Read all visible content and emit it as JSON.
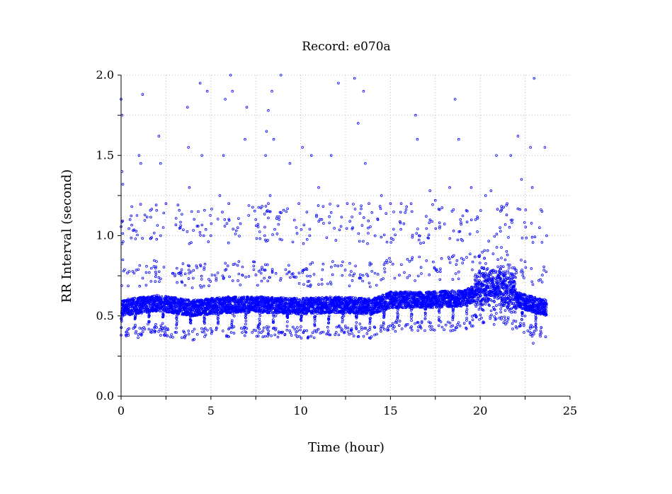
{
  "chart_data": {
    "type": "scatter",
    "title": "Record:  e070a",
    "xlabel": "Time (hour)",
    "ylabel": "RR Interval (second)",
    "xlim": [
      0,
      25
    ],
    "ylim": [
      0,
      2
    ],
    "xticks": [
      0,
      5,
      10,
      15,
      20,
      25
    ],
    "xtick_labels": [
      "0",
      "5",
      "10",
      "15",
      "20",
      "25"
    ],
    "yticks": [
      0,
      0.5,
      1,
      1.5,
      2
    ],
    "ytick_labels": [
      "0.0",
      "0.5",
      "1.0",
      "1.5",
      "2.0"
    ],
    "grid": true,
    "marker_color": "#0000ff",
    "series": [
      {
        "x_range": [
          0,
          23.7
        ],
        "points": [
          [
            0.0,
            1.85
          ],
          [
            0.05,
            1.75
          ],
          [
            0.05,
            1.4
          ],
          [
            0.1,
            1.32
          ],
          [
            0.05,
            0.95
          ],
          [
            0.1,
            0.85
          ],
          [
            0.1,
            0.5
          ],
          [
            0.2,
            0.55
          ],
          [
            0.3,
            0.4
          ],
          [
            0.5,
            1.1
          ],
          [
            0.8,
            0.98
          ],
          [
            1.0,
            1.5
          ],
          [
            1.1,
            1.45
          ],
          [
            1.2,
            1.88
          ],
          [
            1.0,
            0.6
          ],
          [
            1.2,
            0.55
          ],
          [
            1.5,
            0.45
          ],
          [
            2.0,
            0.6
          ],
          [
            2.1,
            1.62
          ],
          [
            2.2,
            1.45
          ],
          [
            2.2,
            1.0
          ],
          [
            2.5,
            1.2
          ],
          [
            2.8,
            0.55
          ],
          [
            3.0,
            0.6
          ],
          [
            3.3,
            1.05
          ],
          [
            3.7,
            1.8
          ],
          [
            3.75,
            1.55
          ],
          [
            3.8,
            1.3
          ],
          [
            3.8,
            0.95
          ],
          [
            4.0,
            0.5
          ],
          [
            4.3,
            1.15
          ],
          [
            4.4,
            1.95
          ],
          [
            4.5,
            1.5
          ],
          [
            4.6,
            1.0
          ],
          [
            4.7,
            0.55
          ],
          [
            4.8,
            1.9
          ],
          [
            5.0,
            1.0
          ],
          [
            5.2,
            0.6
          ],
          [
            5.5,
            1.25
          ],
          [
            5.7,
            1.5
          ],
          [
            5.8,
            1.85
          ],
          [
            6.0,
            1.2
          ],
          [
            6.1,
            2.0
          ],
          [
            6.2,
            1.9
          ],
          [
            6.3,
            0.5
          ],
          [
            6.5,
            1.05
          ],
          [
            6.9,
            1.6
          ],
          [
            7.0,
            1.8
          ],
          [
            7.2,
            0.58
          ],
          [
            7.5,
            1.1
          ],
          [
            8.0,
            1.0
          ],
          [
            8.05,
            1.5
          ],
          [
            8.1,
            1.65
          ],
          [
            8.2,
            1.78
          ],
          [
            8.2,
            1.2
          ],
          [
            8.3,
            1.25
          ],
          [
            8.4,
            1.9
          ],
          [
            8.5,
            1.6
          ],
          [
            8.6,
            0.5
          ],
          [
            8.8,
            1.1
          ],
          [
            8.9,
            2.0
          ],
          [
            9.0,
            0.4
          ],
          [
            9.2,
            1.15
          ],
          [
            9.4,
            1.45
          ],
          [
            9.5,
            0.6
          ],
          [
            9.9,
            1.2
          ],
          [
            10.1,
            1.55
          ],
          [
            10.3,
            0.55
          ],
          [
            10.5,
            1.0
          ],
          [
            10.6,
            1.5
          ],
          [
            10.8,
            0.6
          ],
          [
            11.0,
            1.3
          ],
          [
            11.2,
            0.55
          ],
          [
            11.6,
            1.08
          ],
          [
            11.7,
            1.5
          ],
          [
            11.8,
            0.6
          ],
          [
            12.1,
            1.95
          ],
          [
            12.4,
            0.5
          ],
          [
            12.6,
            1.2
          ],
          [
            12.9,
            1.05
          ],
          [
            13.0,
            1.98
          ],
          [
            13.2,
            1.7
          ],
          [
            13.3,
            0.45
          ],
          [
            13.5,
            1.9
          ],
          [
            13.6,
            1.45
          ],
          [
            13.8,
            1.2
          ],
          [
            14.0,
            0.55
          ],
          [
            14.3,
            1.1
          ],
          [
            14.5,
            1.25
          ],
          [
            14.7,
            0.6
          ],
          [
            15.0,
            1.2
          ],
          [
            15.3,
            0.65
          ],
          [
            15.6,
            1.2
          ],
          [
            15.9,
            1.18
          ],
          [
            16.2,
            1.15
          ],
          [
            16.4,
            1.75
          ],
          [
            16.5,
            1.6
          ],
          [
            16.6,
            1.0
          ],
          [
            16.8,
            0.62
          ],
          [
            17.2,
            1.28
          ],
          [
            17.5,
            1.22
          ],
          [
            18.0,
            0.65
          ],
          [
            18.3,
            1.3
          ],
          [
            18.6,
            1.85
          ],
          [
            18.8,
            1.6
          ],
          [
            18.9,
            1.1
          ],
          [
            19.1,
            0.6
          ],
          [
            19.5,
            1.3
          ],
          [
            19.8,
            0.7
          ],
          [
            20.3,
            1.25
          ],
          [
            20.6,
            1.28
          ],
          [
            20.9,
            1.5
          ],
          [
            21.1,
            1.05
          ],
          [
            21.3,
            0.75
          ],
          [
            21.5,
            1.2
          ],
          [
            21.7,
            1.5
          ],
          [
            21.9,
            0.8
          ],
          [
            22.1,
            1.62
          ],
          [
            22.3,
            1.35
          ],
          [
            22.5,
            0.5
          ],
          [
            22.8,
            1.55
          ],
          [
            22.9,
            1.3
          ],
          [
            23.0,
            1.98
          ],
          [
            23.1,
            0.45
          ],
          [
            23.3,
            1.05
          ],
          [
            23.6,
            1.55
          ],
          [
            23.7,
            1.0
          ],
          [
            22.95,
            0.33
          ],
          [
            4.0,
            0.35
          ],
          [
            7.9,
            0.37
          ]
        ],
        "baseline_band": {
          "description_points": [
            [
              0,
              0.55
            ],
            [
              2,
              0.58
            ],
            [
              4,
              0.55
            ],
            [
              6,
              0.57
            ],
            [
              8,
              0.57
            ],
            [
              10,
              0.56
            ],
            [
              12,
              0.57
            ],
            [
              14,
              0.56
            ],
            [
              15,
              0.6
            ],
            [
              17,
              0.6
            ],
            [
              19,
              0.61
            ],
            [
              20,
              0.65
            ],
            [
              21,
              0.67
            ],
            [
              22,
              0.6
            ],
            [
              23.7,
              0.55
            ]
          ]
        }
      }
    ]
  }
}
